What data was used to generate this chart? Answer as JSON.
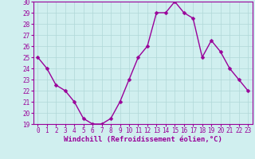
{
  "x": [
    0,
    1,
    2,
    3,
    4,
    5,
    6,
    7,
    8,
    9,
    10,
    11,
    12,
    13,
    14,
    15,
    16,
    17,
    18,
    19,
    20,
    21,
    22,
    23
  ],
  "y": [
    25,
    24,
    22.5,
    22,
    21,
    19.5,
    19,
    19,
    19.5,
    21,
    23,
    25,
    26,
    29,
    29,
    30,
    29,
    28.5,
    25,
    26.5,
    25.5,
    24,
    23,
    22
  ],
  "line_color": "#990099",
  "marker": "D",
  "marker_size": 2.5,
  "bg_color": "#d0efef",
  "grid_color": "#b0d8d8",
  "xlabel": "Windchill (Refroidissement éolien,°C)",
  "xlabel_color": "#990099",
  "tick_color": "#990099",
  "ylim": [
    19,
    30
  ],
  "yticks": [
    19,
    20,
    21,
    22,
    23,
    24,
    25,
    26,
    27,
    28,
    29,
    30
  ],
  "xticks": [
    0,
    1,
    2,
    3,
    4,
    5,
    6,
    7,
    8,
    9,
    10,
    11,
    12,
    13,
    14,
    15,
    16,
    17,
    18,
    19,
    20,
    21,
    22,
    23
  ],
  "tick_fontsize": 5.5,
  "xlabel_fontsize": 6.5,
  "line_width": 1.0,
  "spine_color": "#990099"
}
